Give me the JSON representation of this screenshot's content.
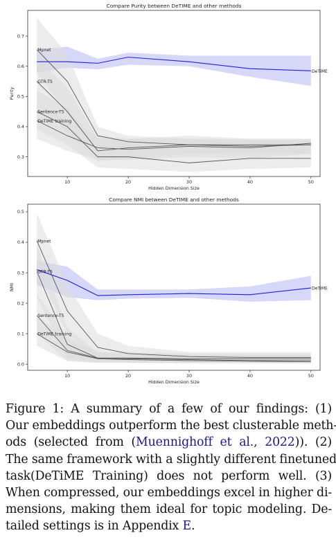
{
  "chart_data": [
    {
      "type": "line",
      "title": "Compare Purity between DeTIME and other methods",
      "xlabel": "Hidden Dimension Size",
      "ylabel": "Purity",
      "x": [
        5,
        10,
        15,
        20,
        30,
        40,
        50
      ],
      "xticks": [
        10,
        20,
        30,
        40,
        50
      ],
      "yticks": [
        "0.3",
        "0.4",
        "0.5",
        "0.6",
        "0.7"
      ],
      "xlim": [
        3.5,
        51.5
      ],
      "ylim": [
        0.235,
        0.785
      ],
      "grid": false,
      "legend": "inline labels",
      "series": [
        {
          "name": "DeTiME",
          "color": "#1f1fd6",
          "band_color": "#c9c9f7",
          "values": [
            0.615,
            0.615,
            0.61,
            0.63,
            0.615,
            0.592,
            0.585
          ],
          "lower": [
            0.58,
            0.595,
            0.59,
            0.605,
            0.6,
            0.565,
            0.535
          ],
          "upper": [
            0.655,
            0.665,
            0.625,
            0.645,
            0.635,
            0.635,
            0.635
          ]
        },
        {
          "name": "Mpnet",
          "color": "#555555",
          "band_color": "#dddddd",
          "values": [
            0.655,
            0.55,
            0.37,
            0.35,
            0.34,
            0.335,
            0.34
          ],
          "lower": [
            0.58,
            0.44,
            0.33,
            0.32,
            0.315,
            0.31,
            0.31
          ],
          "upper": [
            0.76,
            0.64,
            0.4,
            0.37,
            0.36,
            0.355,
            0.355
          ]
        },
        {
          "name": "GTR-T5",
          "color": "#555555",
          "band_color": "#dddddd",
          "values": [
            0.55,
            0.45,
            0.32,
            0.33,
            0.34,
            0.34,
            0.34
          ],
          "lower": [
            0.48,
            0.38,
            0.285,
            0.295,
            0.31,
            0.31,
            0.31
          ],
          "upper": [
            0.63,
            0.53,
            0.36,
            0.36,
            0.36,
            0.36,
            0.36
          ]
        },
        {
          "name": "Sentence-T5",
          "color": "#555555",
          "band_color": "#dddddd",
          "values": [
            0.45,
            0.4,
            0.3,
            0.3,
            0.28,
            0.295,
            0.295
          ],
          "lower": [
            0.39,
            0.34,
            0.265,
            0.26,
            0.25,
            0.26,
            0.265
          ],
          "upper": [
            0.52,
            0.46,
            0.34,
            0.34,
            0.32,
            0.33,
            0.32
          ]
        },
        {
          "name": "DeTiME training",
          "color": "#555555",
          "band_color": "#dddddd",
          "values": [
            0.42,
            0.37,
            0.33,
            0.325,
            0.335,
            0.33,
            0.345
          ],
          "lower": [
            0.36,
            0.32,
            0.29,
            0.29,
            0.3,
            0.295,
            0.31
          ],
          "upper": [
            0.48,
            0.42,
            0.37,
            0.36,
            0.37,
            0.36,
            0.36
          ]
        }
      ]
    },
    {
      "type": "line",
      "title": "Compare NMI between DeTIME and other methods",
      "xlabel": "Hidden Dimension Size",
      "ylabel": "NMI",
      "x": [
        5,
        10,
        15,
        20,
        30,
        40,
        50
      ],
      "xticks": [
        10,
        20,
        30,
        40,
        50
      ],
      "yticks": [
        "0.0",
        "0.1",
        "0.2",
        "0.3",
        "0.4",
        "0.5"
      ],
      "xlim": [
        3.5,
        51.5
      ],
      "ylim": [
        -0.02,
        0.525
      ],
      "grid": false,
      "legend": "inline labels",
      "series": [
        {
          "name": "DeTiME",
          "color": "#1f1fd6",
          "band_color": "#c9c9f7",
          "values": [
            0.31,
            0.275,
            0.225,
            0.228,
            0.232,
            0.228,
            0.25
          ],
          "lower": [
            0.26,
            0.22,
            0.21,
            0.215,
            0.218,
            0.205,
            0.21
          ],
          "upper": [
            0.34,
            0.32,
            0.245,
            0.245,
            0.245,
            0.255,
            0.29
          ]
        },
        {
          "name": "Mpnet",
          "color": "#555555",
          "band_color": "#dddddd",
          "values": [
            0.405,
            0.175,
            0.055,
            0.035,
            0.025,
            0.022,
            0.022
          ],
          "lower": [
            0.31,
            0.1,
            0.02,
            0.01,
            0.008,
            0.005,
            0.005
          ],
          "upper": [
            0.495,
            0.26,
            0.1,
            0.06,
            0.04,
            0.04,
            0.04
          ]
        },
        {
          "name": "GTR-T5",
          "color": "#555555",
          "band_color": "#dddddd",
          "values": [
            0.305,
            0.065,
            0.02,
            0.02,
            0.018,
            0.018,
            0.018
          ],
          "lower": [
            0.22,
            0.02,
            0.005,
            0.005,
            0.005,
            0.005,
            0.005
          ],
          "upper": [
            0.39,
            0.12,
            0.04,
            0.04,
            0.035,
            0.035,
            0.035
          ]
        },
        {
          "name": "Sentence-T5",
          "color": "#555555",
          "band_color": "#dddddd",
          "values": [
            0.16,
            0.045,
            0.02,
            0.018,
            0.015,
            0.012,
            0.012
          ],
          "lower": [
            0.1,
            0.01,
            0.005,
            0.005,
            0.004,
            0.004,
            0.004
          ],
          "upper": [
            0.23,
            0.09,
            0.04,
            0.035,
            0.03,
            0.03,
            0.03
          ]
        },
        {
          "name": "DeTiME training",
          "color": "#555555",
          "band_color": "#dddddd",
          "values": [
            0.1,
            0.04,
            0.018,
            0.015,
            0.012,
            0.01,
            0.008
          ],
          "lower": [
            0.06,
            0.01,
            0.004,
            0.004,
            0.003,
            0.003,
            0.002
          ],
          "upper": [
            0.16,
            0.08,
            0.035,
            0.03,
            0.025,
            0.022,
            0.02
          ]
        }
      ]
    }
  ],
  "caption": {
    "lines": [
      "Figure 1: A summary of a few of our findings: (1)",
      "Our embeddings outperform the best clusterable meth-",
      [
        "ods (selected from (",
        "Muennighoff et al., 2022",
        ")). (2)"
      ],
      "The same framework with a slightly different finetuned",
      "task(DeTiME Training) does not perform well. (3)",
      "When compressed, our embeddings excel in higher di-",
      "mensions, making them ideal for topic modeling. De-",
      [
        "tailed settings is in Appendix ",
        "E",
        "."
      ]
    ]
  }
}
